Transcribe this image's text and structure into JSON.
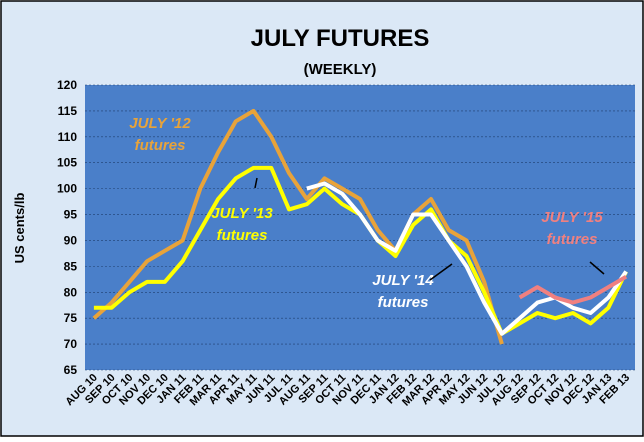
{
  "chart_data": {
    "type": "line",
    "title": "JULY FUTURES",
    "subtitle": "(WEEKLY)",
    "y_label": "US cents/lb",
    "categories": [
      "AUG 10",
      "SEP 10",
      "OCT 10",
      "NOV 10",
      "DEC 10",
      "JAN 11",
      "FEB 11",
      "MAR 11",
      "APR 11",
      "MAY 11",
      "JUN 11",
      "JUL 11",
      "AUG 11",
      "SEP 11",
      "OCT 11",
      "NOV 11",
      "DEC 11",
      "JAN 12",
      "FEB 12",
      "MAR 12",
      "APR 12",
      "MAY 12",
      "JUN 12",
      "JUL 12",
      "AUG 12",
      "SEP 12",
      "OCT 12",
      "NOV 12",
      "DEC 12",
      "JAN 13",
      "FEB 13"
    ],
    "series": [
      {
        "name": "JULY '12",
        "annotation": "futures",
        "color": "#e8a33a",
        "values": [
          75,
          78,
          82,
          86,
          88,
          90,
          100,
          107,
          113,
          115,
          110,
          103,
          98,
          102,
          100,
          98,
          92,
          88,
          95,
          98,
          92,
          90,
          82,
          70,
          null,
          null,
          null,
          null,
          null,
          null,
          null
        ]
      },
      {
        "name": "JULY '13",
        "annotation": "futures",
        "color": "#ffff00",
        "values": [
          77,
          77,
          80,
          82,
          82,
          86,
          92,
          98,
          102,
          104,
          104,
          96,
          97,
          100,
          97,
          95,
          90,
          87,
          93,
          96,
          90,
          87,
          80,
          72,
          74,
          76,
          75,
          76,
          74,
          77,
          84
        ]
      },
      {
        "name": "JULY '14",
        "annotation": "futures",
        "color": "#ffffff",
        "values": [
          null,
          null,
          null,
          null,
          null,
          null,
          null,
          null,
          null,
          null,
          null,
          null,
          100,
          101,
          99,
          95,
          90,
          88,
          95,
          95,
          90,
          85,
          78,
          72,
          75,
          78,
          79,
          77,
          76,
          79,
          84
        ]
      },
      {
        "name": "JULY '15",
        "annotation": "futures",
        "color": "#f08080",
        "values": [
          null,
          null,
          null,
          null,
          null,
          null,
          null,
          null,
          null,
          null,
          null,
          null,
          null,
          null,
          null,
          null,
          null,
          null,
          null,
          null,
          null,
          null,
          null,
          null,
          79,
          81,
          79,
          78,
          79,
          81,
          83
        ]
      }
    ],
    "ylim": [
      65,
      120
    ],
    "yticks": [
      65,
      70,
      75,
      80,
      85,
      90,
      95,
      100,
      105,
      110,
      115,
      120
    ],
    "grid": true
  }
}
